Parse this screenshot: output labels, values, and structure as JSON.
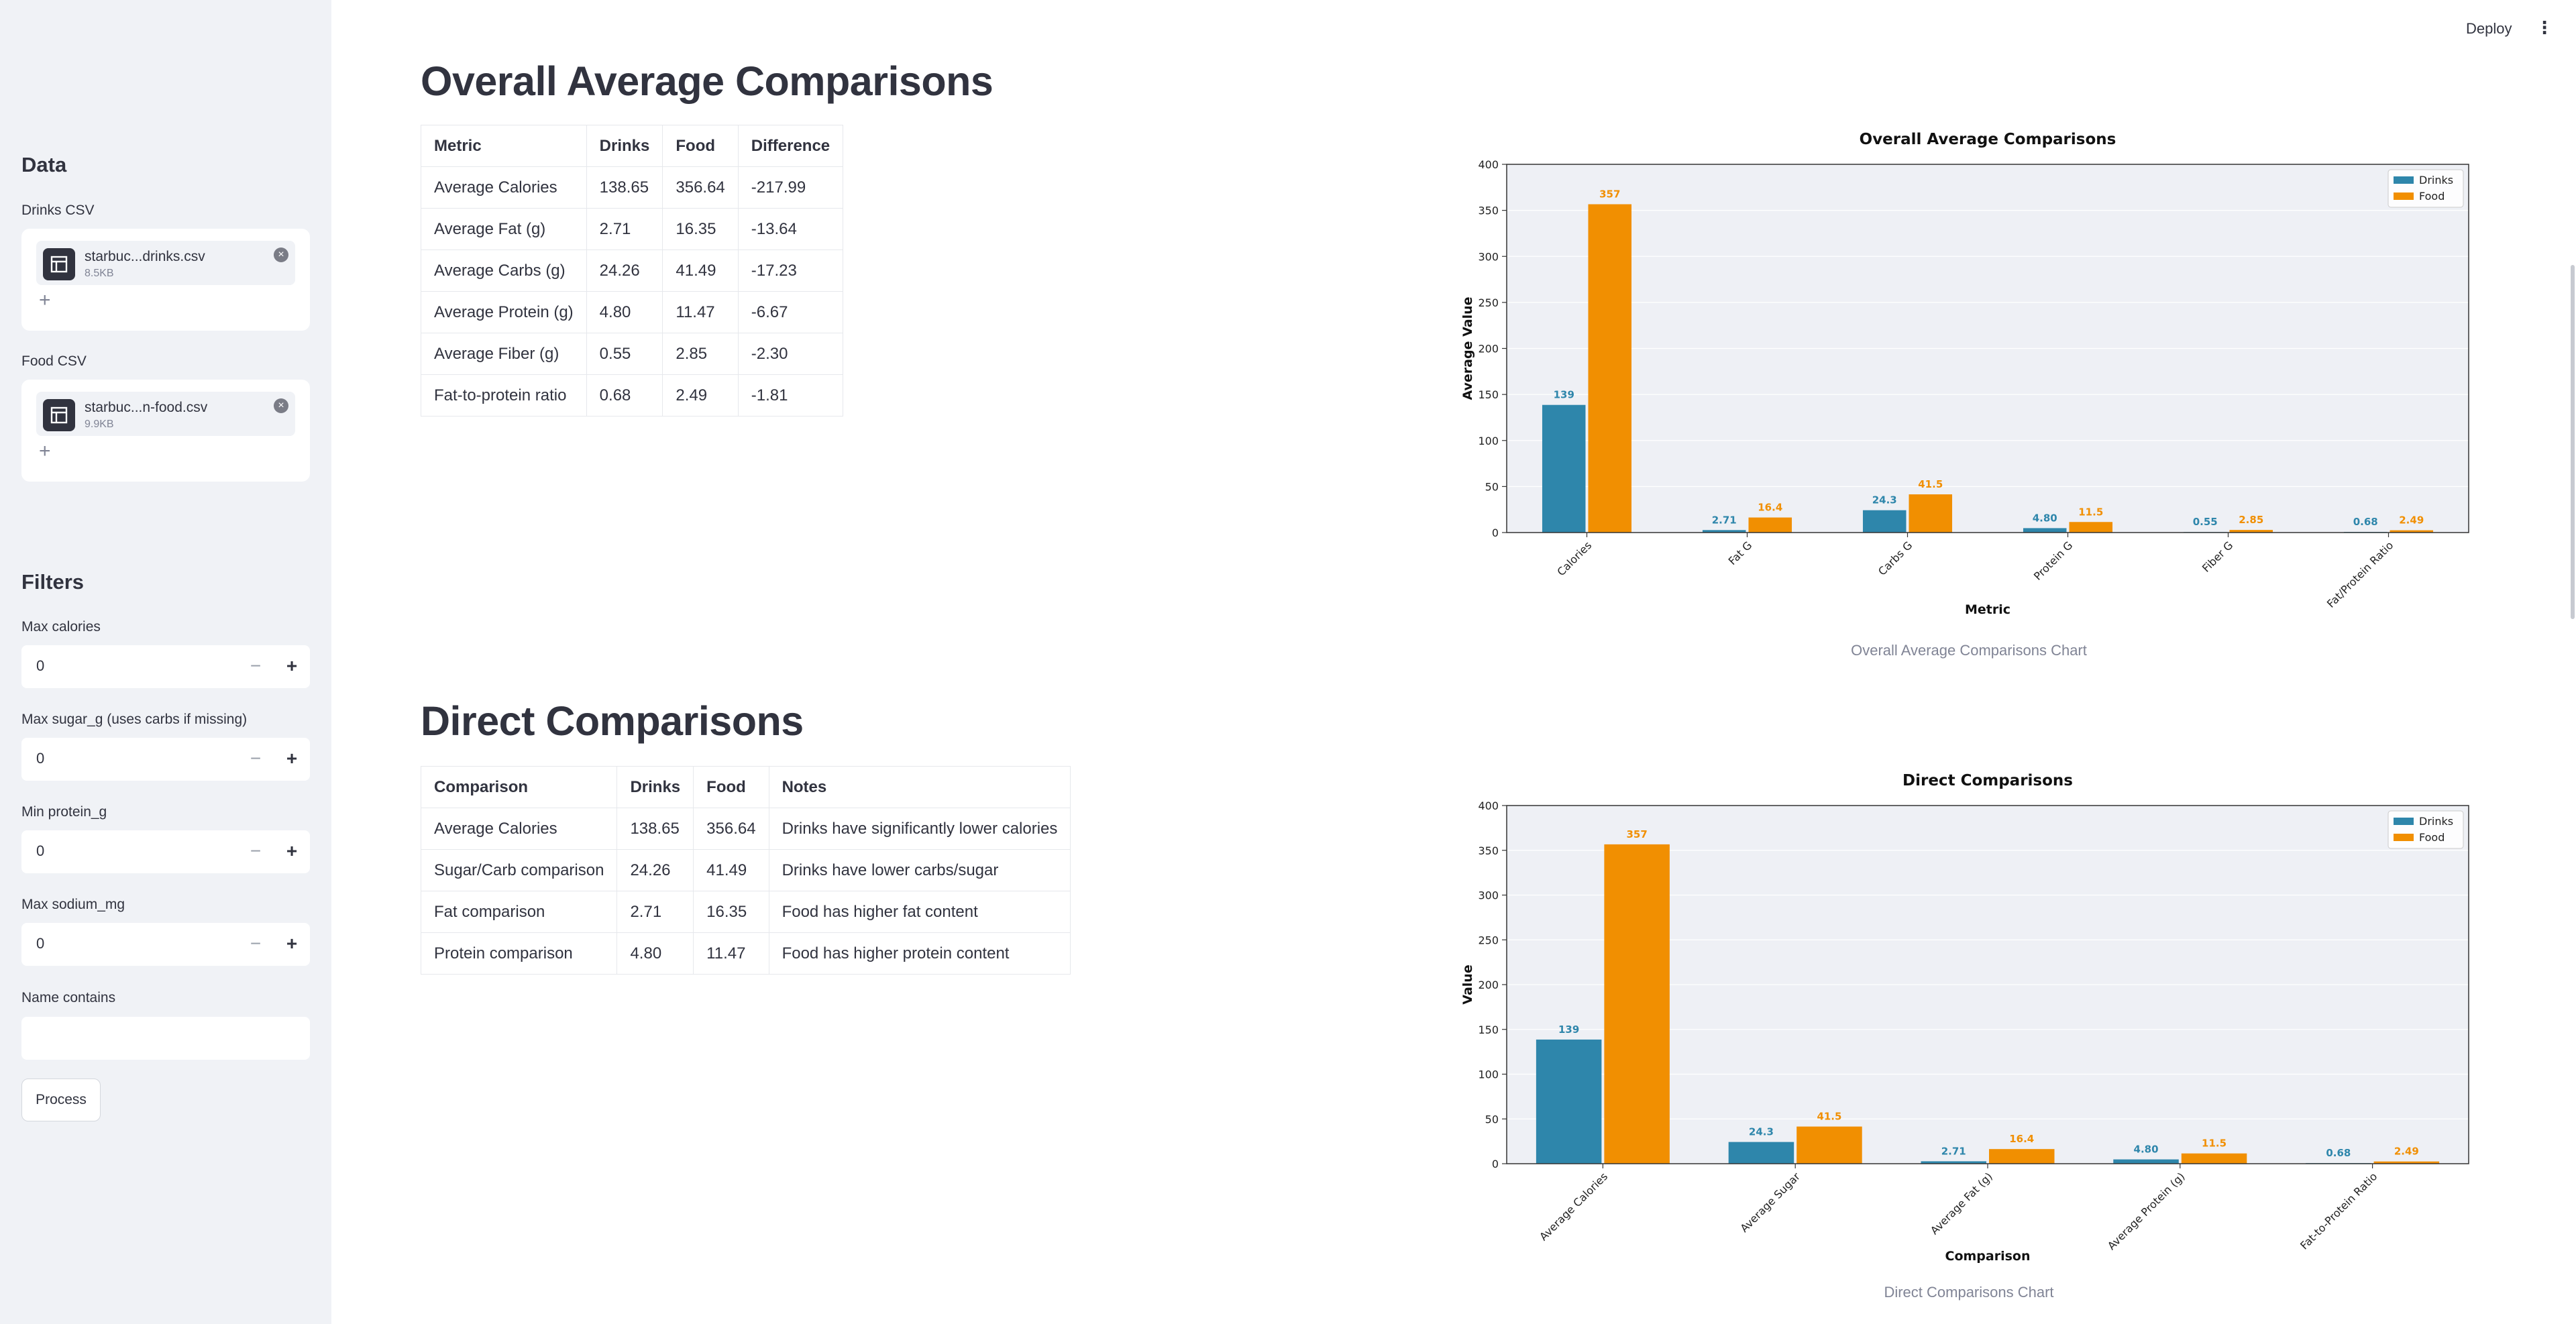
{
  "header": {
    "deploy_label": "Deploy",
    "menu_icon": "⋮"
  },
  "sidebar": {
    "data_heading": "Data",
    "drinks_label": "Drinks CSV",
    "drinks_file": {
      "name": "starbuc...drinks.csv",
      "size": "8.5KB"
    },
    "food_label": "Food CSV",
    "food_file": {
      "name": "starbuc...n-food.csv",
      "size": "9.9KB"
    },
    "add_icon": "+",
    "remove_icon": "×",
    "filters_heading": "Filters",
    "filters": [
      {
        "label": "Max calories",
        "value": "0"
      },
      {
        "label": "Max sugar_g (uses carbs if missing)",
        "value": "0"
      },
      {
        "label": "Min protein_g",
        "value": "0"
      },
      {
        "label": "Max sodium_mg",
        "value": "0"
      }
    ],
    "minus_icon": "−",
    "plus_icon": "+",
    "name_contains_label": "Name contains",
    "name_contains_value": "",
    "process_label": "Process"
  },
  "overall": {
    "title": "Overall Average Comparisons",
    "headers": [
      "Metric",
      "Drinks",
      "Food",
      "Difference"
    ],
    "rows": [
      [
        "Average Calories",
        "138.65",
        "356.64",
        "-217.99"
      ],
      [
        "Average Fat (g)",
        "2.71",
        "16.35",
        "-13.64"
      ],
      [
        "Average Carbs (g)",
        "24.26",
        "41.49",
        "-17.23"
      ],
      [
        "Average Protein (g)",
        "4.80",
        "11.47",
        "-6.67"
      ],
      [
        "Average Fiber (g)",
        "0.55",
        "2.85",
        "-2.30"
      ],
      [
        "Fat-to-protein ratio",
        "0.68",
        "2.49",
        "-1.81"
      ]
    ],
    "caption": "Overall Average Comparisons Chart"
  },
  "direct": {
    "title": "Direct Comparisons",
    "headers": [
      "Comparison",
      "Drinks",
      "Food",
      "Notes"
    ],
    "rows": [
      [
        "Average Calories",
        "138.65",
        "356.64",
        "Drinks have significantly lower calories"
      ],
      [
        "Sugar/Carb comparison",
        "24.26",
        "41.49",
        "Drinks have lower carbs/sugar"
      ],
      [
        "Fat comparison",
        "2.71",
        "16.35",
        "Food has higher fat content"
      ],
      [
        "Protein comparison",
        "4.80",
        "11.47",
        "Food has higher protein content"
      ]
    ],
    "caption": "Direct Comparisons Chart"
  },
  "colors": {
    "drinks": "#2e86ab",
    "food": "#f18f01",
    "plot_bg": "#eef0f5"
  },
  "chart_data": [
    {
      "type": "bar",
      "title": "Overall Average Comparisons",
      "xlabel": "Metric",
      "ylabel": "Average Value",
      "ylim": [
        0,
        400
      ],
      "yticks": [
        0,
        50,
        100,
        150,
        200,
        250,
        300,
        350,
        400
      ],
      "categories": [
        "Calories",
        "Fat G",
        "Carbs G",
        "Protein G",
        "Fiber G",
        "Fat/Protein Ratio"
      ],
      "series": [
        {
          "name": "Drinks",
          "values": [
            138.65,
            2.71,
            24.26,
            4.8,
            0.55,
            0.68
          ],
          "labels": [
            "139",
            "2.71",
            "24.3",
            "4.80",
            "0.55",
            "0.68"
          ]
        },
        {
          "name": "Food",
          "values": [
            356.64,
            16.35,
            41.49,
            11.47,
            2.85,
            2.49
          ],
          "labels": [
            "357",
            "16.4",
            "41.5",
            "11.5",
            "2.85",
            "2.49"
          ]
        }
      ],
      "grid": true,
      "legend": "top-right"
    },
    {
      "type": "bar",
      "title": "Direct Comparisons",
      "xlabel": "Comparison",
      "ylabel": "Value",
      "ylim": [
        0,
        400
      ],
      "yticks": [
        0,
        50,
        100,
        150,
        200,
        250,
        300,
        350,
        400
      ],
      "categories": [
        "Average Calories",
        "Average Sugar",
        "Average Fat (g)",
        "Average Protein (g)",
        "Fat-to-Protein Ratio"
      ],
      "series": [
        {
          "name": "Drinks",
          "values": [
            138.65,
            24.26,
            2.71,
            4.8,
            0.68
          ],
          "labels": [
            "139",
            "24.3",
            "2.71",
            "4.80",
            "0.68"
          ]
        },
        {
          "name": "Food",
          "values": [
            356.64,
            41.49,
            16.35,
            11.47,
            2.49
          ],
          "labels": [
            "357",
            "41.5",
            "16.4",
            "11.5",
            "2.49"
          ]
        }
      ],
      "grid": true,
      "legend": "top-right"
    }
  ]
}
